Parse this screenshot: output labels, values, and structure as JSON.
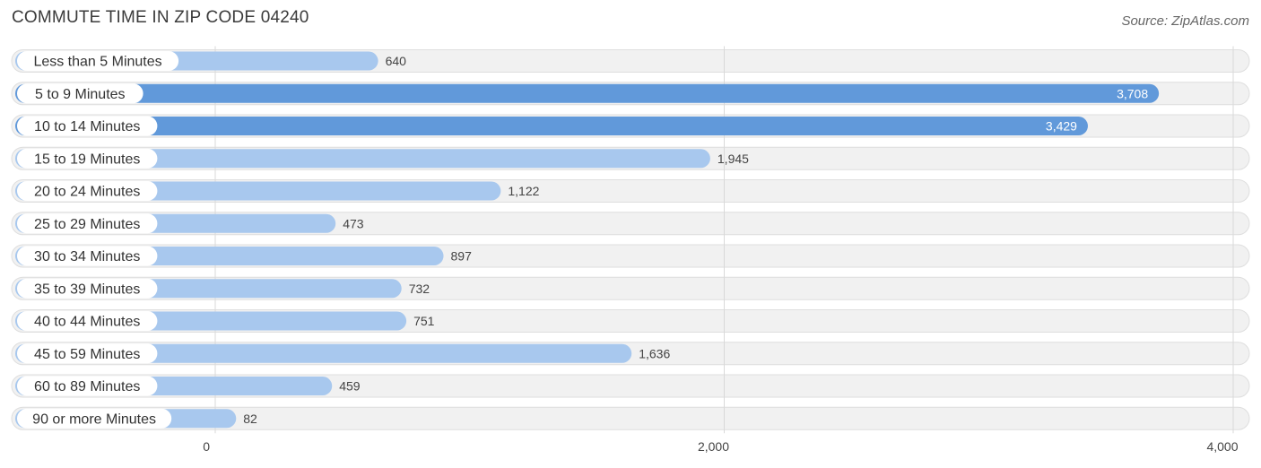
{
  "header": {
    "title": "COMMUTE TIME IN ZIP CODE 04240",
    "source": "Source: ZipAtlas.com"
  },
  "colors": {
    "bar_light": "#a8c8ee",
    "bar_dark": "#6199da",
    "row_bg": "#f1f1f1",
    "row_border": "#dedede",
    "grid": "#d9d9d9"
  },
  "chart_data": {
    "type": "bar",
    "orientation": "horizontal",
    "title": "COMMUTE TIME IN ZIP CODE 04240",
    "categories": [
      "Less than 5 Minutes",
      "5 to 9 Minutes",
      "10 to 14 Minutes",
      "15 to 19 Minutes",
      "20 to 24 Minutes",
      "25 to 29 Minutes",
      "30 to 34 Minutes",
      "35 to 39 Minutes",
      "40 to 44 Minutes",
      "45 to 59 Minutes",
      "60 to 89 Minutes",
      "90 or more Minutes"
    ],
    "values": [
      640,
      3708,
      3429,
      1945,
      1122,
      473,
      897,
      732,
      751,
      1636,
      459,
      82
    ],
    "value_labels": [
      "640",
      "3,708",
      "3,429",
      "1,945",
      "1,122",
      "473",
      "897",
      "732",
      "751",
      "1,636",
      "459",
      "82"
    ],
    "xlim": [
      0,
      4000
    ],
    "ticks": [
      0,
      2000,
      4000
    ],
    "tick_labels": [
      "0",
      "2,000",
      "4,000"
    ],
    "grid": true,
    "legend": "none"
  }
}
